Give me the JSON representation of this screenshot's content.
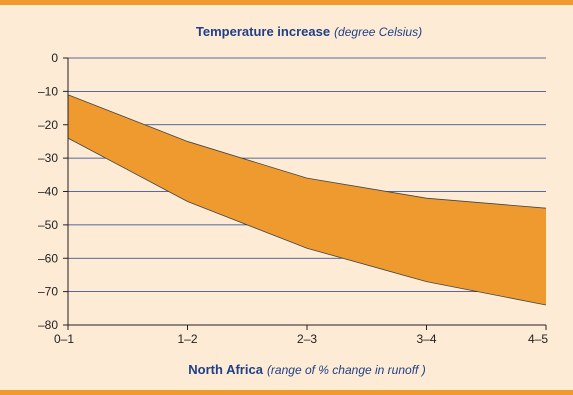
{
  "chart_data": {
    "type": "area",
    "title_main": "Temperature increase",
    "title_sub": "(degree Celsius)",
    "xlabel_main": "North Africa",
    "xlabel_sub": "(range of % change in runoff )",
    "categories": [
      "0–1",
      "1–2",
      "2–3",
      "3–4",
      "4–5"
    ],
    "yticks": [
      0,
      -10,
      -20,
      -30,
      -40,
      -50,
      -60,
      -70,
      -80
    ],
    "ytick_labels": [
      "0",
      "–10",
      "–20",
      "–30",
      "–40",
      "–50",
      "–60",
      "–70",
      "–80"
    ],
    "ylim": [
      -80,
      0
    ],
    "series": [
      {
        "values": [
          -11,
          -25,
          -36,
          -42,
          -45
        ]
      },
      {
        "values": [
          -24,
          -43,
          -57,
          -67,
          -74
        ]
      }
    ],
    "grid": "horizontal",
    "colors": {
      "band": "#ee9a2e",
      "background": "#fdebd6",
      "grid": "#1f3f86",
      "title": "#1f3f86",
      "border": "#ee9a2e"
    }
  }
}
